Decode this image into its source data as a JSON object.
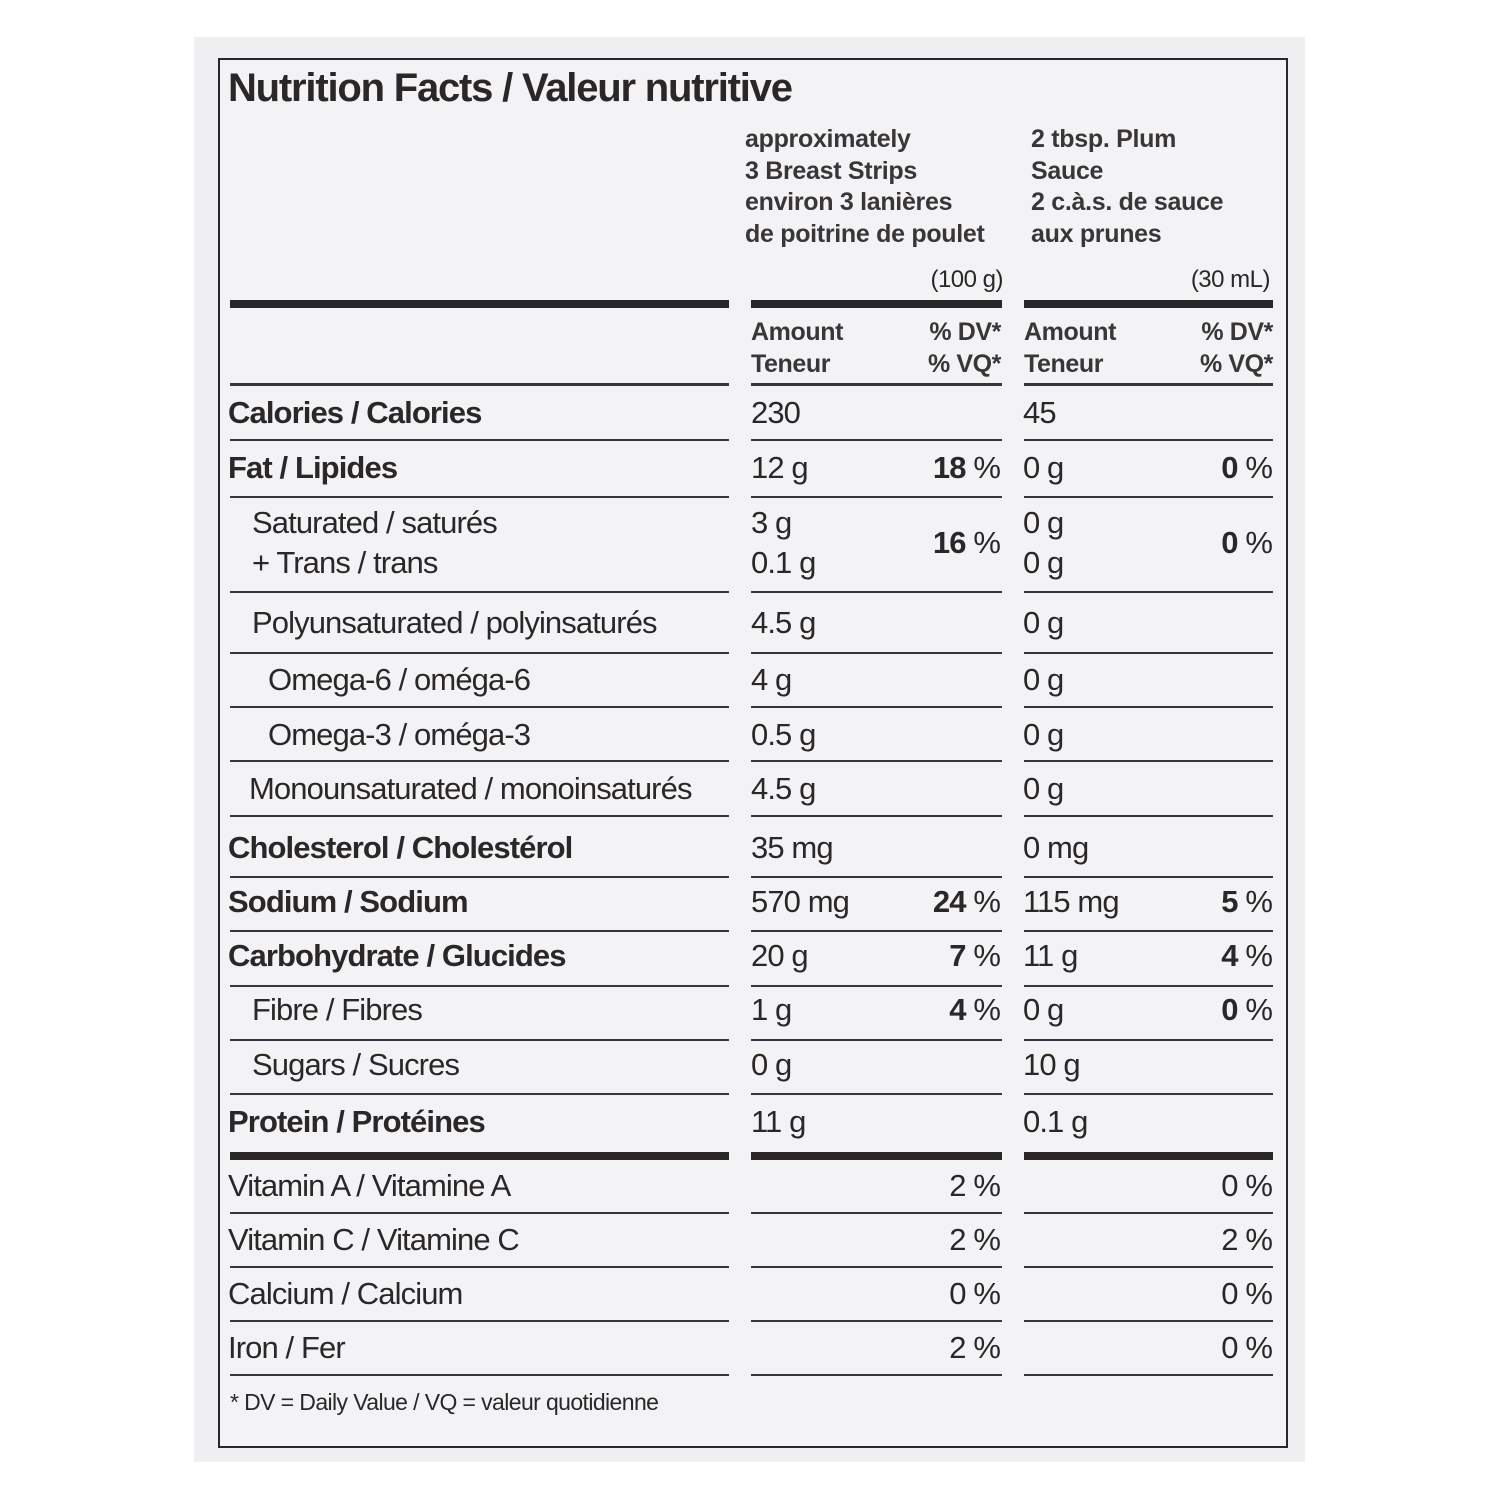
{
  "title": "Nutrition Facts / Valeur nutritive",
  "columns": [
    {
      "serving_lines": [
        "approximately",
        "3 Breast Strips",
        "environ 3 lanières",
        "de poitrine de poulet"
      ],
      "serving_size": "(100 g)",
      "amount_label": [
        "Amount",
        "Teneur"
      ],
      "dv_label": [
        "% DV*",
        "% VQ*"
      ]
    },
    {
      "serving_lines": [
        "2 tbsp. Plum",
        "Sauce",
        "2 c.à.s. de sauce",
        "aux prunes"
      ],
      "serving_size": "(30 mL)",
      "amount_label": [
        "Amount",
        "Teneur"
      ],
      "dv_label": [
        "% DV*",
        "% VQ*"
      ]
    }
  ],
  "rows": [
    {
      "label": "Calories / Calories",
      "bold": true,
      "c1": {
        "amount": "230"
      },
      "c2": {
        "amount": "45"
      }
    },
    {
      "label": "Fat / Lipides",
      "bold": true,
      "c1": {
        "amount": "12 g",
        "dv": "18"
      },
      "c2": {
        "amount": "0 g",
        "dv": "0"
      }
    },
    {
      "label": "Saturated / saturés",
      "label2": "+ Trans / trans",
      "c1": {
        "amount": "3 g",
        "amount2": "0.1 g",
        "dv": "16"
      },
      "c2": {
        "amount": "0 g",
        "amount2": "0 g",
        "dv": "0"
      }
    },
    {
      "label": "Polyunsaturated / polyinsaturés",
      "c1": {
        "amount": "4.5 g"
      },
      "c2": {
        "amount": "0 g"
      }
    },
    {
      "label": "Omega-6 / oméga-6",
      "c1": {
        "amount": "4 g"
      },
      "c2": {
        "amount": "0 g"
      }
    },
    {
      "label": "Omega-3 / oméga-3",
      "c1": {
        "amount": "0.5 g"
      },
      "c2": {
        "amount": "0 g"
      }
    },
    {
      "label": "Monounsaturated / monoinsaturés",
      "c1": {
        "amount": "4.5 g"
      },
      "c2": {
        "amount": "0 g"
      }
    },
    {
      "label": "Cholesterol / Cholestérol",
      "bold": true,
      "c1": {
        "amount": "35 mg"
      },
      "c2": {
        "amount": "0 mg"
      }
    },
    {
      "label": "Sodium / Sodium",
      "bold": true,
      "c1": {
        "amount": "570 mg",
        "dv": "24"
      },
      "c2": {
        "amount": "115 mg",
        "dv": "5"
      }
    },
    {
      "label": "Carbohydrate / Glucides",
      "bold": true,
      "c1": {
        "amount": "20 g",
        "dv": "7"
      },
      "c2": {
        "amount": "11 g",
        "dv": "4"
      }
    },
    {
      "label": "Fibre / Fibres",
      "c1": {
        "amount": "1 g",
        "dv": "4"
      },
      "c2": {
        "amount": "0 g",
        "dv": "0"
      }
    },
    {
      "label": "Sugars / Sucres",
      "c1": {
        "amount": "0 g"
      },
      "c2": {
        "amount": "10 g"
      }
    },
    {
      "label": "Protein / Protéines",
      "bold": true,
      "c1": {
        "amount": "11 g"
      },
      "c2": {
        "amount": "0.1 g"
      }
    },
    {
      "label": "Vitamin A / Vitamine A",
      "c1": {
        "pct": "2 %"
      },
      "c2": {
        "pct": "0 %"
      }
    },
    {
      "label": "Vitamin C / Vitamine C",
      "c1": {
        "pct": "2 %"
      },
      "c2": {
        "pct": "2 %"
      }
    },
    {
      "label": "Calcium / Calcium",
      "c1": {
        "pct": "0 %"
      },
      "c2": {
        "pct": "0 %"
      }
    },
    {
      "label": "Iron / Fer",
      "c1": {
        "pct": "2 %"
      },
      "c2": {
        "pct": "0 %"
      }
    }
  ],
  "percent_sign": " %",
  "footnote": "* DV = Daily Value / VQ = valeur quotidienne"
}
